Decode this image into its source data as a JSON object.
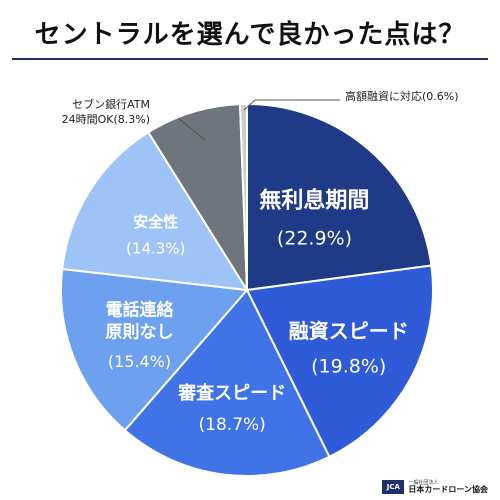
{
  "title": "セントラルを選んで良かった点は？",
  "footer": {
    "logo_mark": "JCA",
    "org_small": "一般社団法人",
    "org_name": "日本カードローン協会"
  },
  "chart_data": {
    "type": "pie",
    "title": "セントラルを選んで良かった点は？",
    "unit": "%",
    "slices": [
      {
        "label": "無利息期間",
        "value": 22.9,
        "value_text": "(22.9%)",
        "color": "#1f3a86",
        "label_color": "#ffffff"
      },
      {
        "label": "融資スピード",
        "value": 19.8,
        "value_text": "(19.8%)",
        "color": "#2f5ad8",
        "label_color": "#ffffff"
      },
      {
        "label": "審査スピード",
        "value": 18.7,
        "value_text": "(18.7%)",
        "color": "#3f73e6",
        "label_color": "#ffffff"
      },
      {
        "label": "電話連絡\n原則なし",
        "value": 15.4,
        "value_text": "(15.4%)",
        "color": "#6ea0f0",
        "label_color": "#ffffff"
      },
      {
        "label": "安全性",
        "value": 14.3,
        "value_text": "(14.3%)",
        "color": "#9ec3f6",
        "label_color": "#ffffff"
      },
      {
        "label": "セブン銀行ATM\n24時間OK",
        "value": 8.3,
        "value_text": "(8.3%)",
        "color": "#6f757c",
        "label_color": "#222222",
        "outside": true
      },
      {
        "label": "高額融資に対応",
        "value": 0.6,
        "value_text": "(0.6%)",
        "color": "#c9ccd3",
        "label_color": "#222222",
        "outside": true
      }
    ]
  }
}
